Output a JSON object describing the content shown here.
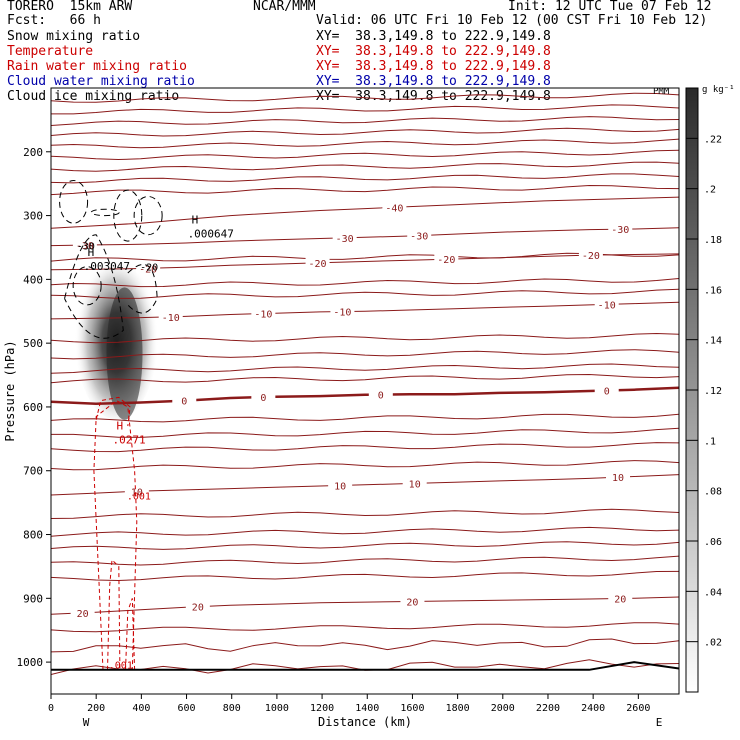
{
  "header": {
    "model": "TORERO  15km ARW",
    "org": "NCAR/MMM",
    "init": "Init: 12 UTC Tue 07 Feb 12",
    "fcst": "Fcst:   66 h",
    "valid": "Valid: 06 UTC Fri 10 Feb 12 (00 CST Fri 10 Feb 12)"
  },
  "fields": [
    {
      "name": "Snow mixing ratio",
      "xy": "XY=  38.3,149.8 to 222.9,149.8",
      "color": "#000000"
    },
    {
      "name": "Temperature",
      "xy": "XY=  38.3,149.8 to 222.9,149.8",
      "color": "#cc0000"
    },
    {
      "name": "Rain water mixing ratio",
      "xy": "XY=  38.3,149.8 to 222.9,149.8",
      "color": "#cc0000"
    },
    {
      "name": "Cloud water mixing ratio",
      "xy": "XY=  38.3,149.8 to 222.9,149.8",
      "color": "#0000aa"
    },
    {
      "name": "Cloud ice mixing ratio",
      "xy": "XY=  38.3,149.8 to 222.9,149.8",
      "color": "#000000"
    }
  ],
  "chart_data": {
    "type": "heatmap",
    "xlabel": "Distance (km)",
    "ylabel": "Pressure (hPa)",
    "xlim": [
      0,
      2780
    ],
    "ylim": [
      1050,
      100
    ],
    "x_ticks": [
      0,
      200,
      400,
      600,
      800,
      1000,
      1200,
      1400,
      1600,
      1800,
      2000,
      2200,
      2400,
      2600
    ],
    "y_ticks": [
      200,
      300,
      400,
      500,
      600,
      700,
      800,
      900,
      1000
    ],
    "x_end_labels": {
      "left": "W",
      "right": "E"
    },
    "colorbar": {
      "unit": "g kg⁻¹",
      "ticks": [
        ".02",
        ".04",
        ".06",
        ".08",
        ".1",
        ".12",
        ".14",
        ".16",
        ".18",
        ".2",
        ".22"
      ],
      "values": [
        0.02,
        0.04,
        0.06,
        0.08,
        0.1,
        0.12,
        0.14,
        0.16,
        0.18,
        0.2,
        0.22
      ],
      "range": [
        0,
        0.24
      ]
    },
    "shading": {
      "field": "Snow mixing ratio",
      "x_center": 290,
      "p_top": 350,
      "p_bottom": 620,
      "max_value": 0.22
    },
    "temperature_isotherms": [
      {
        "label": "-40",
        "label_x": [
          1520
        ],
        "p": [
          320,
          316,
          312,
          306,
          300,
          296,
          292,
          289,
          286,
          283,
          280,
          277,
          275,
          273,
          271
        ]
      },
      {
        "label": "-30",
        "label_x": [
          150,
          1300,
          1630,
          2520
        ],
        "p": [
          347,
          346,
          345,
          343,
          340,
          338,
          336,
          334,
          332,
          329,
          326,
          324,
          322,
          321,
          319
        ]
      },
      {
        "label": "-20",
        "label_x": [
          430,
          1180,
          1750,
          2390
        ],
        "p": [
          385,
          384,
          383,
          381,
          378,
          376,
          374,
          372,
          370,
          368,
          366,
          364,
          362,
          361,
          360
        ]
      },
      {
        "label": "-10",
        "label_x": [
          530,
          940,
          1290,
          2460
        ],
        "p": [
          462,
          461,
          460,
          458,
          455,
          453,
          451,
          450,
          448,
          446,
          444,
          442,
          440,
          438,
          436
        ]
      },
      {
        "label": "0",
        "label_x": [
          590,
          940,
          1460,
          2460
        ],
        "p": [
          592,
          595,
          593,
          590,
          586,
          584,
          583,
          581,
          580,
          580,
          578,
          577,
          575,
          573,
          570
        ],
        "bold": true
      },
      {
        "label": "10",
        "label_x": [
          380,
          1280,
          1610,
          2510
        ],
        "p": [
          738,
          735,
          732,
          730,
          728,
          726,
          724,
          722,
          720,
          718,
          716,
          714,
          712,
          709,
          706
        ]
      },
      {
        "label": "20",
        "label_x": [
          140,
          650,
          1600,
          2520
        ],
        "p": [
          925,
          922,
          918,
          914,
          911,
          909,
          907,
          906,
          905,
          904,
          903,
          902,
          901,
          900,
          898
        ]
      }
    ],
    "minor_isotherm_levels_p": [
      120,
      138,
      156,
      174,
      192,
      210,
      228,
      246,
      264,
      370,
      410,
      428,
      497,
      522,
      544,
      560,
      622,
      646,
      668,
      696,
      772,
      800,
      822,
      846,
      870,
      950,
      978,
      1012
    ],
    "rain_mixing_ratio": {
      "max_label": "H",
      "max_value": ".0271",
      "max_x": 290,
      "max_p": 645,
      "contour_labels": [
        {
          "text": ".001",
          "x": 380,
          "p": 745
        },
        {
          "text": ".001",
          "x": 300,
          "p": 1010
        }
      ]
    },
    "cloud_ice_mixing_ratio": {
      "max_labels": [
        {
          "text": "H",
          "value": ".000647",
          "x": 640,
          "p": 322
        },
        {
          "text": "H",
          "value": ".003047",
          "x": 180,
          "p": 373
        }
      ]
    },
    "snow_contour_labels": [
      {
        "text": "-30",
        "x": 150,
        "p": 347
      },
      {
        "text": "-20",
        "x": 430,
        "p": 380
      }
    ],
    "terrain_p": [
      1012,
      1012,
      1012,
      1012,
      1012,
      1012,
      1012,
      1012,
      1012,
      1012,
      1012,
      1012,
      1012,
      1000,
      1010
    ]
  },
  "corner_mark": "PMM"
}
